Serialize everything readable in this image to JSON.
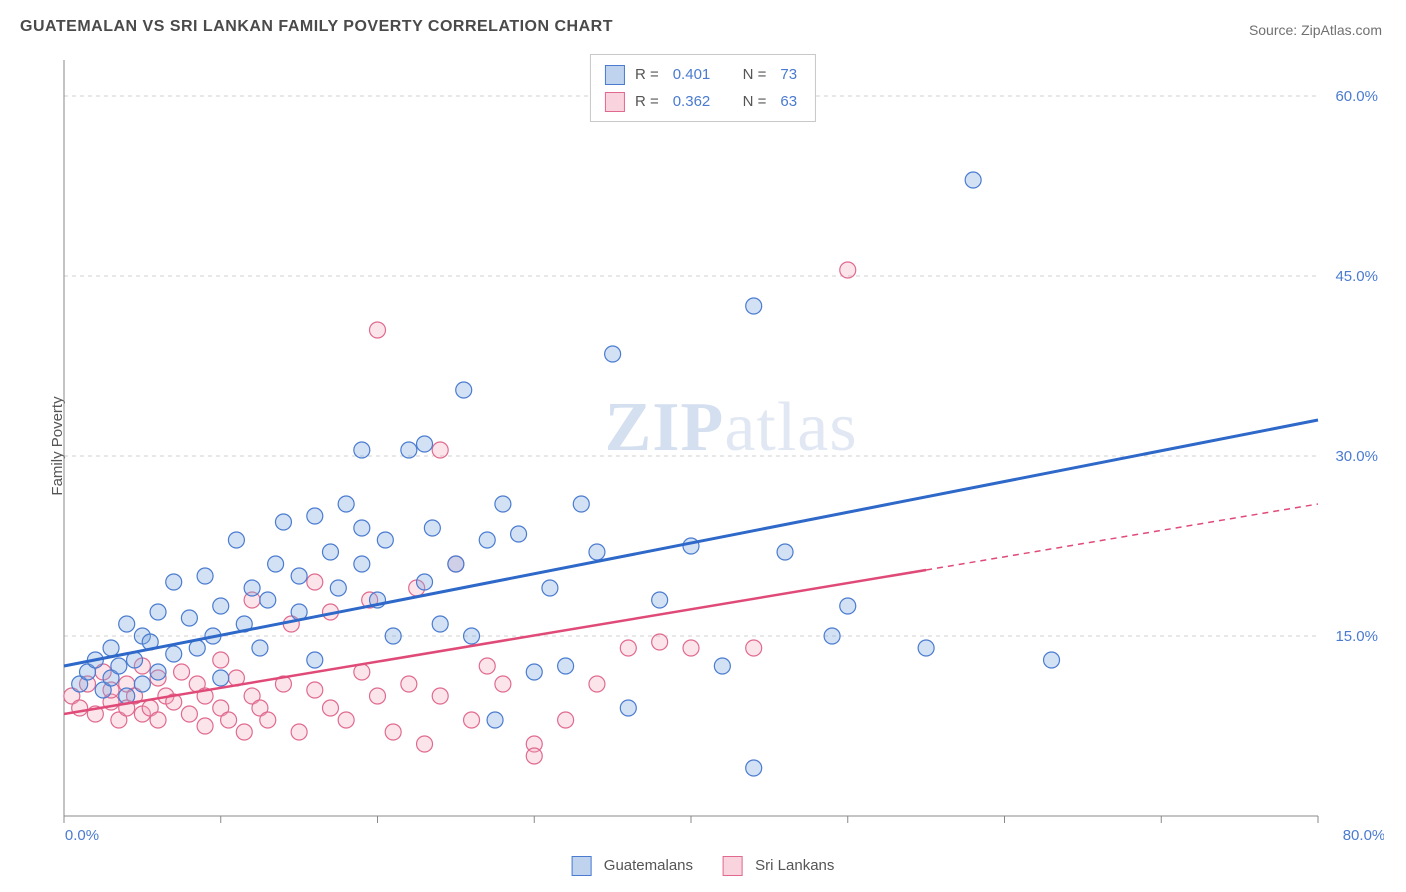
{
  "title": "GUATEMALAN VS SRI LANKAN FAMILY POVERTY CORRELATION CHART",
  "source_label": "Source: ",
  "source_name": "ZipAtlas.com",
  "ylabel": "Family Poverty",
  "watermark_bold": "ZIP",
  "watermark_light": "atlas",
  "chart": {
    "type": "scatter",
    "xlim": [
      0,
      80
    ],
    "ylim": [
      0,
      63
    ],
    "x_ticks": [
      0,
      10,
      20,
      30,
      40,
      50,
      60,
      70,
      80
    ],
    "x_tick_labels": [
      "0.0%",
      "",
      "",
      "",
      "",
      "",
      "",
      "",
      "80.0%"
    ],
    "y_ticks": [
      15,
      30,
      45,
      60
    ],
    "y_tick_labels": [
      "15.0%",
      "30.0%",
      "45.0%",
      "60.0%"
    ],
    "grid_color": "#d0d0d0",
    "background_color": "#ffffff",
    "marker_radius": 8,
    "series": [
      {
        "key": "a",
        "label": "Guatemalans",
        "fill": "#7fa8e0",
        "stroke": "#4a7bd0",
        "R": "0.401",
        "N": "73",
        "trend": {
          "x1": 0,
          "y1": 12.5,
          "x2": 80,
          "y2": 33,
          "color": "#2e68c9"
        },
        "points": [
          [
            1,
            11
          ],
          [
            1.5,
            12
          ],
          [
            2,
            13
          ],
          [
            2.5,
            10.5
          ],
          [
            3,
            14
          ],
          [
            3,
            11.5
          ],
          [
            3.5,
            12.5
          ],
          [
            4,
            16
          ],
          [
            4,
            10
          ],
          [
            4.5,
            13
          ],
          [
            5,
            15
          ],
          [
            5,
            11
          ],
          [
            5.5,
            14.5
          ],
          [
            6,
            12
          ],
          [
            6,
            17
          ],
          [
            7,
            13.5
          ],
          [
            7,
            19.5
          ],
          [
            8,
            16.5
          ],
          [
            8.5,
            14
          ],
          [
            9,
            20
          ],
          [
            9.5,
            15
          ],
          [
            10,
            17.5
          ],
          [
            10,
            11.5
          ],
          [
            11,
            23
          ],
          [
            11.5,
            16
          ],
          [
            12,
            19
          ],
          [
            12.5,
            14
          ],
          [
            13,
            18
          ],
          [
            13.5,
            21
          ],
          [
            14,
            24.5
          ],
          [
            15,
            20
          ],
          [
            15,
            17
          ],
          [
            16,
            25
          ],
          [
            16,
            13
          ],
          [
            17,
            22
          ],
          [
            17.5,
            19
          ],
          [
            18,
            26
          ],
          [
            19,
            21
          ],
          [
            19,
            24
          ],
          [
            19,
            30.5
          ],
          [
            20,
            18
          ],
          [
            20.5,
            23
          ],
          [
            21,
            15
          ],
          [
            22,
            30.5
          ],
          [
            23,
            19.5
          ],
          [
            23,
            31
          ],
          [
            23.5,
            24
          ],
          [
            24,
            16
          ],
          [
            25,
            21
          ],
          [
            25.5,
            35.5
          ],
          [
            26,
            15
          ],
          [
            27,
            23
          ],
          [
            27.5,
            8
          ],
          [
            28,
            26
          ],
          [
            29,
            23.5
          ],
          [
            30,
            12
          ],
          [
            31,
            19
          ],
          [
            32,
            12.5
          ],
          [
            33,
            26
          ],
          [
            34,
            22
          ],
          [
            35,
            38.5
          ],
          [
            36,
            9
          ],
          [
            38,
            18
          ],
          [
            40,
            22.5
          ],
          [
            42,
            12.5
          ],
          [
            44,
            42.5
          ],
          [
            44,
            4
          ],
          [
            46,
            22
          ],
          [
            49,
            15
          ],
          [
            50,
            17.5
          ],
          [
            58,
            53
          ],
          [
            63,
            13
          ],
          [
            55,
            14
          ]
        ]
      },
      {
        "key": "b",
        "label": "Sri Lankans",
        "fill": "#f3a8bd",
        "stroke": "#e06a8f",
        "R": "0.362",
        "N": "63",
        "trend": {
          "x1": 0,
          "y1": 8.5,
          "x2": 55,
          "y2": 20.5,
          "ext_x2": 80,
          "ext_y2": 26,
          "color": "#e04a78"
        },
        "points": [
          [
            0.5,
            10
          ],
          [
            1,
            9
          ],
          [
            1.5,
            11
          ],
          [
            2,
            8.5
          ],
          [
            2.5,
            12
          ],
          [
            3,
            9.5
          ],
          [
            3,
            10.5
          ],
          [
            3.5,
            8
          ],
          [
            4,
            11
          ],
          [
            4,
            9
          ],
          [
            4.5,
            10
          ],
          [
            5,
            8.5
          ],
          [
            5,
            12.5
          ],
          [
            5.5,
            9
          ],
          [
            6,
            11.5
          ],
          [
            6,
            8
          ],
          [
            6.5,
            10
          ],
          [
            7,
            9.5
          ],
          [
            7.5,
            12
          ],
          [
            8,
            8.5
          ],
          [
            8.5,
            11
          ],
          [
            9,
            7.5
          ],
          [
            9,
            10
          ],
          [
            10,
            9
          ],
          [
            10,
            13
          ],
          [
            10.5,
            8
          ],
          [
            11,
            11.5
          ],
          [
            11.5,
            7
          ],
          [
            12,
            10
          ],
          [
            12,
            18
          ],
          [
            12.5,
            9
          ],
          [
            13,
            8
          ],
          [
            14,
            11
          ],
          [
            14.5,
            16
          ],
          [
            15,
            7
          ],
          [
            16,
            10.5
          ],
          [
            16,
            19.5
          ],
          [
            17,
            9
          ],
          [
            17,
            17
          ],
          [
            18,
            8
          ],
          [
            19,
            12
          ],
          [
            19.5,
            18
          ],
          [
            20,
            10
          ],
          [
            20,
            40.5
          ],
          [
            21,
            7
          ],
          [
            22,
            11
          ],
          [
            22.5,
            19
          ],
          [
            23,
            6
          ],
          [
            24,
            10
          ],
          [
            24,
            30.5
          ],
          [
            25,
            21
          ],
          [
            26,
            8
          ],
          [
            27,
            12.5
          ],
          [
            28,
            11
          ],
          [
            30,
            6
          ],
          [
            30,
            5
          ],
          [
            32,
            8
          ],
          [
            34,
            11
          ],
          [
            36,
            14
          ],
          [
            38,
            14.5
          ],
          [
            40,
            14
          ],
          [
            44,
            14
          ],
          [
            50,
            45.5
          ]
        ]
      }
    ]
  },
  "legend_top": {
    "R_label": "R =",
    "N_label": "N ="
  }
}
